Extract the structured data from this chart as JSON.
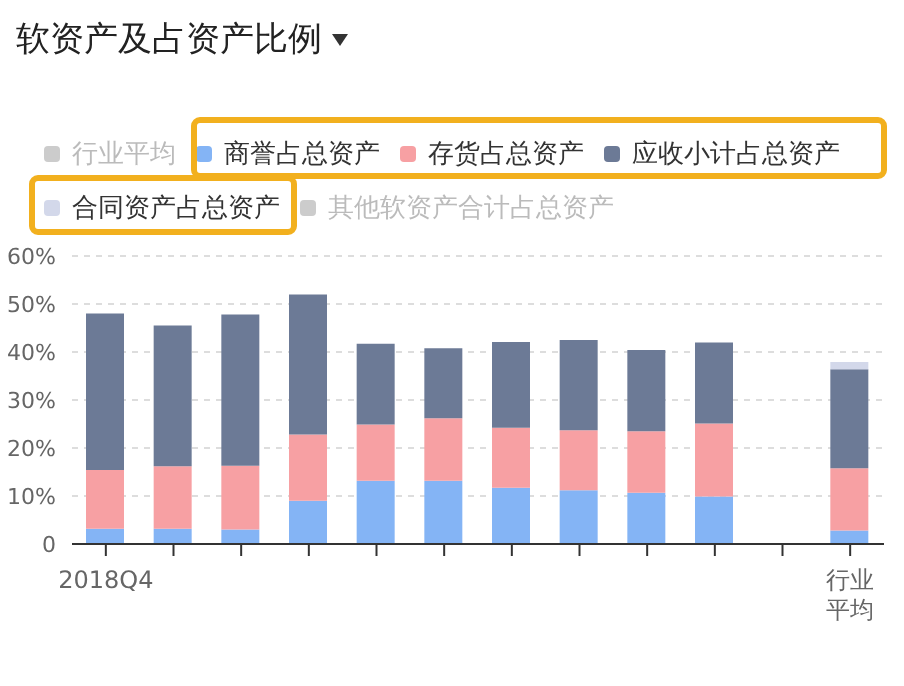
{
  "chart_data": {
    "type": "bar",
    "title": "软资产及占资产比例",
    "stacked": true,
    "categories": [
      "2018Q4",
      null,
      null,
      null,
      null,
      null,
      null,
      null,
      null,
      null,
      null,
      "行业平均"
    ],
    "series": [
      {
        "name": "行业平均",
        "color": "#cccccc",
        "values": [
          null,
          null,
          null,
          null,
          null,
          null,
          null,
          null,
          null,
          null,
          null,
          null
        ]
      },
      {
        "name": "商誉占总资产",
        "color": "#84b4f5",
        "values": [
          3.2,
          3.2,
          3,
          9,
          13.2,
          13.2,
          11.7,
          11.2,
          10.7,
          9.9,
          null,
          2.8
        ]
      },
      {
        "name": "存货占总资产",
        "color": "#f7a0a3",
        "values": [
          12.2,
          13,
          13.3,
          13.8,
          11.7,
          13,
          12.5,
          12.5,
          12.8,
          15.2,
          null,
          13
        ]
      },
      {
        "name": "应收小计占总资产",
        "color": "#6c7a96",
        "values": [
          32.6,
          29.3,
          31.5,
          29.2,
          16.8,
          14.6,
          17.9,
          18.8,
          16.9,
          16.9,
          null,
          20.6
        ]
      },
      {
        "name": "合同资产占总资产",
        "color": "#d3d8ea",
        "values": [
          null,
          null,
          null,
          null,
          null,
          null,
          null,
          null,
          null,
          null,
          null,
          1.5
        ]
      },
      {
        "name": "其他软资产合计占总资产",
        "color": "#cccccc",
        "values": [
          null,
          null,
          null,
          null,
          null,
          null,
          null,
          null,
          null,
          null,
          null,
          null
        ]
      }
    ],
    "ylim": [
      0,
      60
    ],
    "yticks": [
      0,
      {
        "value": 10,
        "label": "10%"
      },
      {
        "value": 20,
        "label": "20%"
      },
      {
        "value": 30,
        "label": "30%"
      },
      {
        "value": 40,
        "label": "40%"
      },
      {
        "value": 50,
        "label": "50%"
      },
      {
        "value": 60,
        "label": "60%"
      }
    ],
    "grid": "y",
    "legend": "top"
  }
}
